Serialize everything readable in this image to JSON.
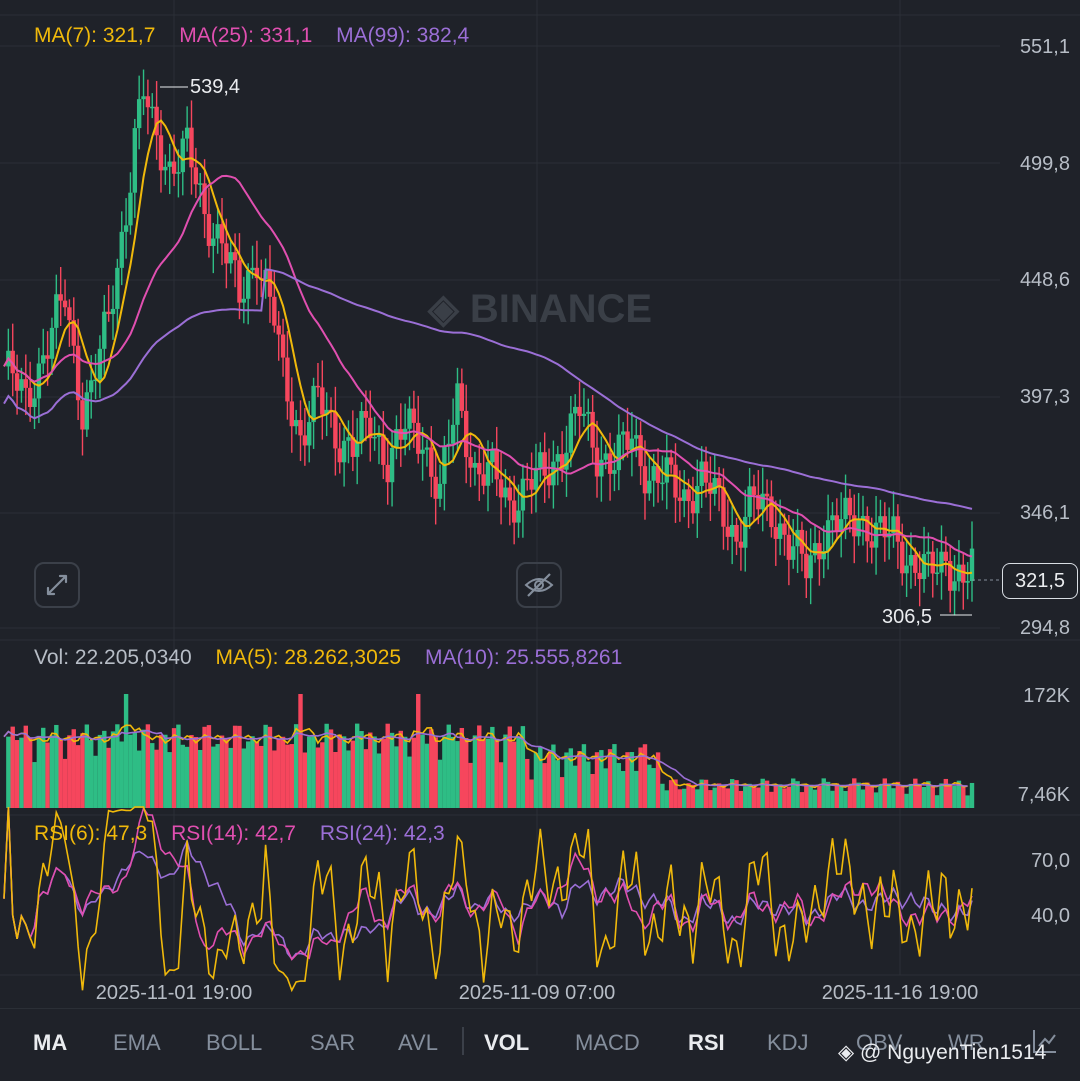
{
  "chart_data": {
    "type": "candlestick",
    "price_axis_ticks": [
      "551,1",
      "499,8",
      "448,6",
      "397,3",
      "346,1",
      "294,8"
    ],
    "volume_axis_ticks": [
      "172K",
      "7,46K"
    ],
    "rsi_axis_ticks": [
      "70,0",
      "40,0"
    ],
    "x_ticks": [
      "2025-11-01 19:00",
      "2025-11-09 07:00",
      "2025-11-16 19:00"
    ],
    "current_price": "321,5",
    "high_marker": "539,4",
    "low_marker": "306,5",
    "ma_legend": {
      "ma7": "MA(7): 321,7",
      "ma25": "MA(25): 331,1",
      "ma99": "MA(99): 382,4"
    },
    "vol_legend": {
      "vol": "Vol: 22.205,0340",
      "ma5": "MA(5): 28.262,3025",
      "ma10": "MA(10): 25.555,8261"
    },
    "rsi_legend": {
      "rsi6": "RSI(6): 47,3",
      "rsi14": "RSI(14): 42,7",
      "rsi24": "RSI(24): 42,3"
    },
    "watermark": "BINANCE",
    "price_range": [
      280,
      560
    ],
    "key_closes": [
      [
        0,
        410
      ],
      [
        5,
        395
      ],
      [
        10,
        420
      ],
      [
        14,
        440
      ],
      [
        18,
        392
      ],
      [
        20,
        400
      ],
      [
        24,
        430
      ],
      [
        28,
        480
      ],
      [
        30,
        510
      ],
      [
        32,
        530
      ],
      [
        34,
        515
      ],
      [
        38,
        498
      ],
      [
        42,
        505
      ],
      [
        46,
        478
      ],
      [
        50,
        465
      ],
      [
        54,
        440
      ],
      [
        58,
        460
      ],
      [
        62,
        430
      ],
      [
        64,
        405
      ],
      [
        68,
        380
      ],
      [
        72,
        395
      ],
      [
        76,
        380
      ],
      [
        80,
        375
      ],
      [
        84,
        383
      ],
      [
        88,
        370
      ],
      [
        92,
        382
      ],
      [
        96,
        378
      ],
      [
        100,
        355
      ],
      [
        104,
        395
      ],
      [
        108,
        365
      ],
      [
        112,
        362
      ],
      [
        116,
        350
      ],
      [
        120,
        358
      ],
      [
        124,
        362
      ],
      [
        128,
        374
      ],
      [
        132,
        390
      ],
      [
        136,
        372
      ],
      [
        140,
        368
      ],
      [
        144,
        378
      ],
      [
        148,
        362
      ],
      [
        152,
        360
      ],
      [
        156,
        353
      ],
      [
        160,
        360
      ],
      [
        164,
        350
      ],
      [
        168,
        335
      ],
      [
        172,
        350
      ],
      [
        176,
        348
      ],
      [
        180,
        330
      ],
      [
        184,
        322
      ],
      [
        188,
        338
      ],
      [
        192,
        340
      ],
      [
        196,
        345
      ],
      [
        200,
        335
      ],
      [
        204,
        336
      ],
      [
        208,
        324
      ],
      [
        212,
        318
      ],
      [
        216,
        326
      ],
      [
        220,
        314
      ],
      [
        222,
        322
      ]
    ],
    "colors": {
      "up": "#2ebd85",
      "down": "#f6465d",
      "ma7": "#f0b90b",
      "ma25": "#e04fb0",
      "ma99": "#9b6fd6",
      "rsi6": "#f0b90b",
      "rsi14": "#e04fb0",
      "rsi24": "#9b6fd6"
    }
  },
  "toolbar": {
    "items": [
      "MA",
      "EMA",
      "BOLL",
      "SAR",
      "AVL",
      "VOL",
      "MACD",
      "RSI",
      "KDJ",
      "OBV",
      "WR"
    ],
    "active": [
      "MA",
      "VOL",
      "RSI"
    ]
  },
  "credit": "NguyenTien1514"
}
